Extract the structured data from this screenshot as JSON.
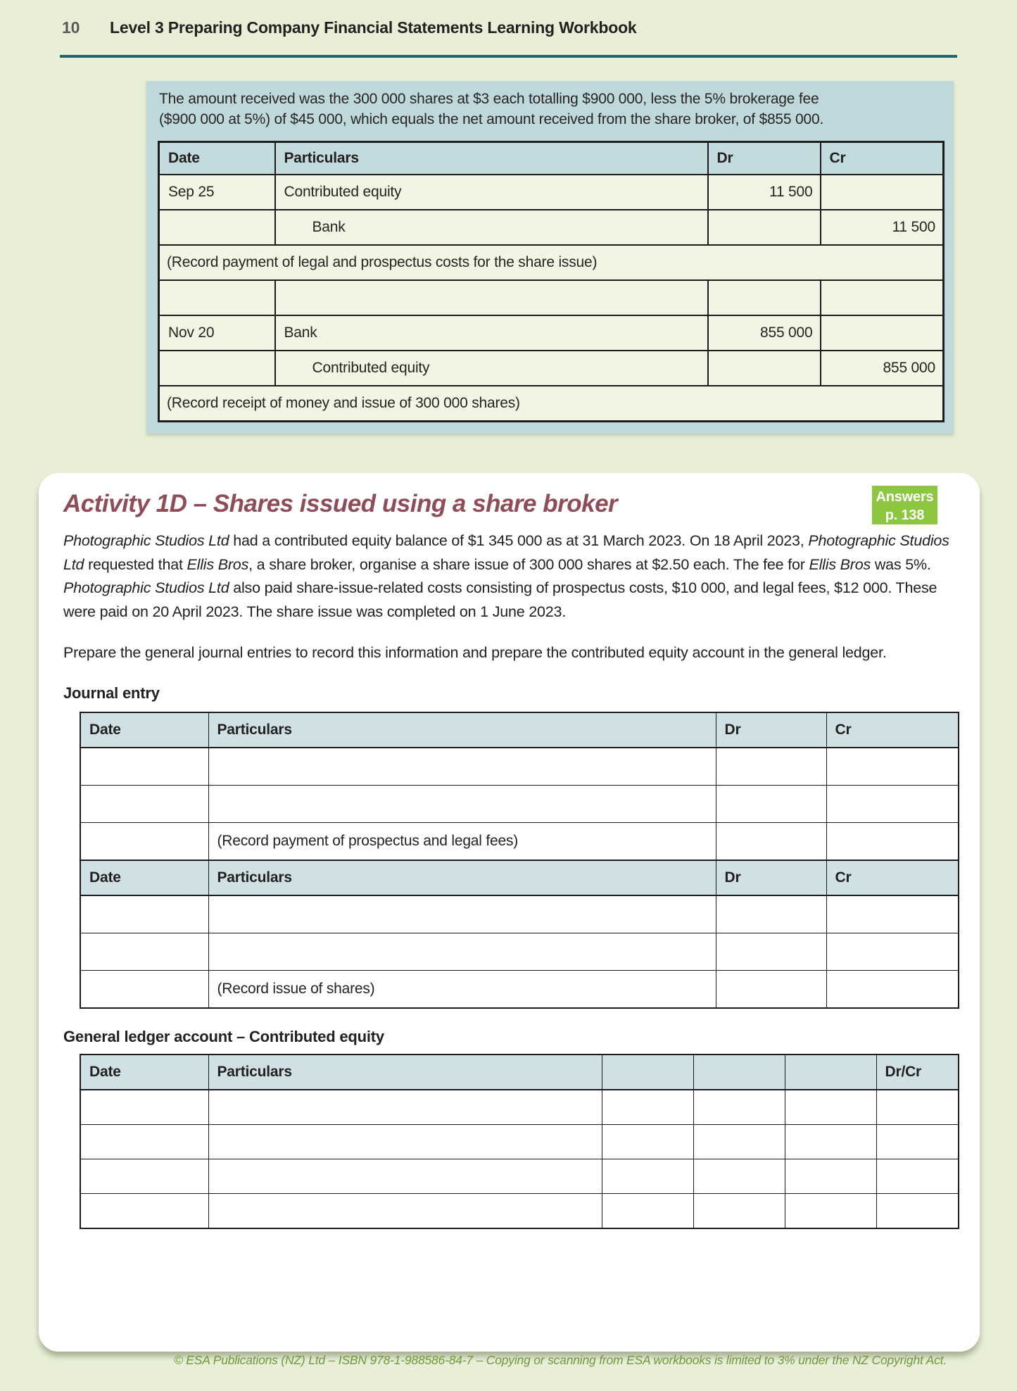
{
  "page": {
    "number": "10",
    "title": "Level 3 Preparing Company Financial Statements Learning Workbook",
    "footer": "© ESA Publications (NZ) Ltd  –  ISBN 978-1-988586-84-7  –  Copying or scanning from ESA workbooks is limited to 3% under the NZ Copyright Act."
  },
  "colors": {
    "page_background": "#e8efd6",
    "panel_blue": "#bfd8dc",
    "table_header_blue": "#cfe1e4",
    "answer_row_cream": "#f3f5e4",
    "heading_maroon": "#8e4d57",
    "badge_green": "#8dc63f",
    "rule_teal": "#2b5f6a",
    "footer_green": "#70993e"
  },
  "answer_box": {
    "explanation_line1": "The amount received was the 300 000 shares at $3 each totalling $900 000, less the 5% brokerage fee",
    "explanation_line2": "($900 000 at 5%) of $45 000, which equals the net amount received from the share broker, of $855 000.",
    "table": {
      "headers": [
        "Date",
        "Particulars",
        "Dr",
        "Cr"
      ],
      "rows": [
        {
          "date": "Sep 25",
          "particulars": "Contributed equity",
          "dr": "11 500",
          "cr": ""
        },
        {
          "date": "",
          "particulars": "Bank",
          "dr": "",
          "cr": "11 500"
        },
        {
          "narration": "(Record payment of legal and prospectus costs for the share issue)"
        },
        {
          "date": "",
          "particulars": "",
          "dr": "",
          "cr": ""
        },
        {
          "date": "Nov 20",
          "particulars": "Bank",
          "dr": "855 000",
          "cr": ""
        },
        {
          "date": "",
          "particulars": "Contributed equity",
          "dr": "",
          "cr": "855 000"
        },
        {
          "narration": "(Record receipt of money and issue of 300 000 shares)"
        }
      ]
    }
  },
  "activity": {
    "title": "Activity 1D – Shares issued using a share broker",
    "answers_badge": {
      "line1": "Answers",
      "line2": "p. 138"
    },
    "intro_segments": [
      {
        "text": "Photographic Studios Ltd",
        "italic": true
      },
      {
        "text": " had a contributed equity balance of $1 345 000 as at 31 March 2023. On 18 April 2023, ",
        "italic": false
      },
      {
        "text": "Photographic Studios Ltd",
        "italic": true
      },
      {
        "text": " requested that ",
        "italic": false
      },
      {
        "text": "Ellis Bros",
        "italic": true
      },
      {
        "text": ", a share broker, organise a share issue of 300 000 shares at $2.50 each. The fee for ",
        "italic": false
      },
      {
        "text": "Ellis Bros",
        "italic": true
      },
      {
        "text": " was 5%. ",
        "italic": false
      },
      {
        "text": "Photographic Studios Ltd",
        "italic": true
      },
      {
        "text": " also paid share-issue-related costs consisting of prospectus costs, $10 000, and legal fees, $12 000. These were paid on 20 April 2023. The share issue was completed on 1 June 2023.",
        "italic": false
      }
    ],
    "task": "Prepare the general journal entries to record this information and prepare the contributed equity account in the general ledger.",
    "journal_label": "Journal entry",
    "journal": {
      "headers": [
        "Date",
        "Particulars",
        "Dr",
        "Cr"
      ],
      "sections": [
        {
          "empty_rows": 2,
          "narration": "(Record payment of prospectus and legal fees)"
        },
        {
          "empty_rows": 2,
          "narration": "(Record issue of shares)"
        }
      ]
    },
    "ledger_label": "General ledger account – Contributed equity",
    "ledger": {
      "headers": [
        "Date",
        "Particulars",
        "",
        "",
        "",
        "Dr/Cr"
      ],
      "empty_rows": 4
    }
  }
}
